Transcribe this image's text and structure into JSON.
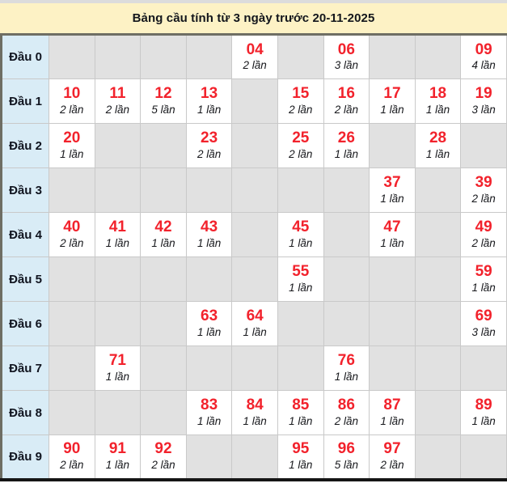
{
  "title": "Bảng cầu tính từ 3 ngày trước 20-11-2025",
  "colors": {
    "title_bg": "#fdf2c5",
    "row_header_bg": "#d9ecf6",
    "empty_cell_bg": "#e1e1e1",
    "filled_cell_bg": "#ffffff",
    "number_color": "#f2222c",
    "count_text_color": "#17181c",
    "outer_border": "#6e6e64",
    "bottom_border": "#151515"
  },
  "chart_data": {
    "type": "table",
    "title": "Bảng cầu tính từ 3 ngày trước 20-11-2025",
    "count_unit": "lần",
    "row_headers": [
      "Đầu 0",
      "Đầu 1",
      "Đầu 2",
      "Đầu 3",
      "Đầu 4",
      "Đầu 5",
      "Đầu 6",
      "Đầu 7",
      "Đầu 8",
      "Đầu 9"
    ],
    "column_digits": [
      0,
      1,
      2,
      3,
      4,
      5,
      6,
      7,
      8,
      9
    ],
    "rows": [
      {
        "label": "Đầu 0",
        "cells": [
          null,
          null,
          null,
          null,
          {
            "number": "04",
            "count": "2 lần",
            "times": 2
          },
          null,
          {
            "number": "06",
            "count": "3 lần",
            "times": 3
          },
          null,
          null,
          {
            "number": "09",
            "count": "4 lần",
            "times": 4
          }
        ]
      },
      {
        "label": "Đầu 1",
        "cells": [
          {
            "number": "10",
            "count": "2 lần",
            "times": 2
          },
          {
            "number": "11",
            "count": "2 lần",
            "times": 2
          },
          {
            "number": "12",
            "count": "5 lần",
            "times": 5
          },
          {
            "number": "13",
            "count": "1 lần",
            "times": 1
          },
          null,
          {
            "number": "15",
            "count": "2 lần",
            "times": 2
          },
          {
            "number": "16",
            "count": "2 lần",
            "times": 2
          },
          {
            "number": "17",
            "count": "1 lần",
            "times": 1
          },
          {
            "number": "18",
            "count": "1 lần",
            "times": 1
          },
          {
            "number": "19",
            "count": "3 lần",
            "times": 3
          }
        ]
      },
      {
        "label": "Đầu 2",
        "cells": [
          {
            "number": "20",
            "count": "1 lần",
            "times": 1
          },
          null,
          null,
          {
            "number": "23",
            "count": "2 lần",
            "times": 2
          },
          null,
          {
            "number": "25",
            "count": "2 lần",
            "times": 2
          },
          {
            "number": "26",
            "count": "1 lần",
            "times": 1
          },
          null,
          {
            "number": "28",
            "count": "1 lần",
            "times": 1
          },
          null
        ]
      },
      {
        "label": "Đầu 3",
        "cells": [
          null,
          null,
          null,
          null,
          null,
          null,
          null,
          {
            "number": "37",
            "count": "1 lần",
            "times": 1
          },
          null,
          {
            "number": "39",
            "count": "2 lần",
            "times": 2
          }
        ]
      },
      {
        "label": "Đầu 4",
        "cells": [
          {
            "number": "40",
            "count": "2 lần",
            "times": 2
          },
          {
            "number": "41",
            "count": "1 lần",
            "times": 1
          },
          {
            "number": "42",
            "count": "1 lần",
            "times": 1
          },
          {
            "number": "43",
            "count": "1 lần",
            "times": 1
          },
          null,
          {
            "number": "45",
            "count": "1 lần",
            "times": 1
          },
          null,
          {
            "number": "47",
            "count": "1 lần",
            "times": 1
          },
          null,
          {
            "number": "49",
            "count": "2 lần",
            "times": 2
          }
        ]
      },
      {
        "label": "Đầu 5",
        "cells": [
          null,
          null,
          null,
          null,
          null,
          {
            "number": "55",
            "count": "1 lần",
            "times": 1
          },
          null,
          null,
          null,
          {
            "number": "59",
            "count": "1 lần",
            "times": 1
          }
        ]
      },
      {
        "label": "Đầu 6",
        "cells": [
          null,
          null,
          null,
          {
            "number": "63",
            "count": "1 lần",
            "times": 1
          },
          {
            "number": "64",
            "count": "1 lần",
            "times": 1
          },
          null,
          null,
          null,
          null,
          {
            "number": "69",
            "count": "3 lần",
            "times": 3
          }
        ]
      },
      {
        "label": "Đầu 7",
        "cells": [
          null,
          {
            "number": "71",
            "count": "1 lần",
            "times": 1
          },
          null,
          null,
          null,
          null,
          {
            "number": "76",
            "count": "1 lần",
            "times": 1
          },
          null,
          null,
          null
        ]
      },
      {
        "label": "Đầu 8",
        "cells": [
          null,
          null,
          null,
          {
            "number": "83",
            "count": "1 lần",
            "times": 1
          },
          {
            "number": "84",
            "count": "1 lần",
            "times": 1
          },
          {
            "number": "85",
            "count": "1 lần",
            "times": 1
          },
          {
            "number": "86",
            "count": "2 lần",
            "times": 2
          },
          {
            "number": "87",
            "count": "1 lần",
            "times": 1
          },
          null,
          {
            "number": "89",
            "count": "1 lần",
            "times": 1
          }
        ]
      },
      {
        "label": "Đầu 9",
        "cells": [
          {
            "number": "90",
            "count": "2 lần",
            "times": 2
          },
          {
            "number": "91",
            "count": "1 lần",
            "times": 1
          },
          {
            "number": "92",
            "count": "2 lần",
            "times": 2
          },
          null,
          null,
          {
            "number": "95",
            "count": "1 lần",
            "times": 1
          },
          {
            "number": "96",
            "count": "5 lần",
            "times": 5
          },
          {
            "number": "97",
            "count": "2 lần",
            "times": 2
          },
          null,
          null
        ]
      }
    ]
  }
}
